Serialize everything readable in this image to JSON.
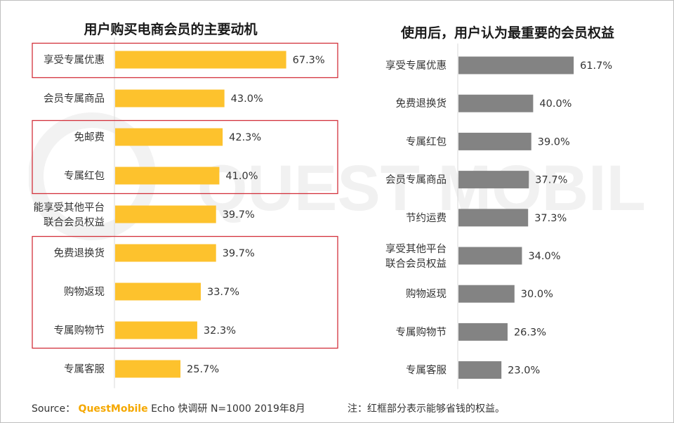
{
  "colors": {
    "left_bar": "#fdc22d",
    "right_bar": "#838383",
    "highlight": "#d3313b"
  },
  "chart_data": [
    {
      "type": "bar",
      "orientation": "horizontal",
      "title": "用户购买电商会员的主要动机",
      "categories": [
        "享受专属优惠",
        "会员专属商品",
        "免邮费",
        "专属红包",
        [
          "能享受其他平台",
          "联合会员权益"
        ],
        "免费退换货",
        "购物返现",
        "专属购物节",
        "专属客服"
      ],
      "values": [
        67.3,
        43.0,
        42.3,
        41.0,
        39.7,
        39.7,
        33.7,
        32.3,
        25.7
      ],
      "labels": [
        "67.3%",
        "43.0%",
        "42.3%",
        "41.0%",
        "39.7%",
        "39.7%",
        "33.7%",
        "32.3%",
        "25.7%"
      ],
      "highlight_groups": [
        [
          0,
          0
        ],
        [
          2,
          3
        ],
        [
          5,
          7
        ]
      ],
      "xlim": [
        0,
        100
      ]
    },
    {
      "type": "bar",
      "orientation": "horizontal",
      "title": "使用后，用户认为最重要的会员权益",
      "categories": [
        "享受专属优惠",
        "免费退换货",
        "专属红包",
        "会员专属商品",
        "节约运费",
        [
          "享受其他平台",
          "联合会员权益"
        ],
        "购物返现",
        "专属购物节",
        "专属客服"
      ],
      "values": [
        61.7,
        40.0,
        39.0,
        37.7,
        37.3,
        34.0,
        30.0,
        26.3,
        23.0
      ],
      "labels": [
        "61.7%",
        "40.0%",
        "39.0%",
        "37.7%",
        "37.3%",
        "34.0%",
        "30.0%",
        "26.3%",
        "23.0%"
      ],
      "xlim": [
        0,
        100
      ]
    }
  ],
  "watermark": "QUEST MOBILE",
  "footer": {
    "source_label": "Source：",
    "brand": "QuestMobile",
    "rest": " Echo 快调研 N=1000 2019年8月"
  },
  "note": "注：红框部分表示能够省钱的权益。"
}
